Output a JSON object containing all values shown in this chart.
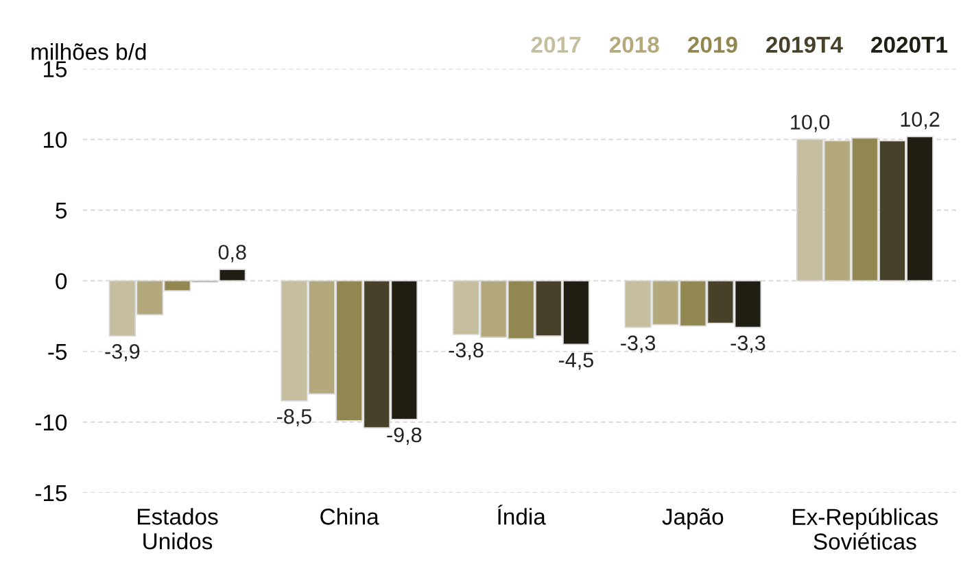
{
  "chart_data": {
    "type": "bar",
    "ylabel": "milhões b/d",
    "categories": [
      "Estados\nUnidos",
      "China",
      "Índia",
      "Japão",
      "Ex-Repúblicas\nSoviéticas"
    ],
    "series": [
      {
        "name": "2017",
        "color": "#c6bf9f",
        "values": [
          -3.9,
          -8.5,
          -3.8,
          -3.3,
          10.0
        ],
        "value_labels": [
          "-3,9",
          "-8,5",
          "-3,8",
          "-3,3",
          "10,0"
        ]
      },
      {
        "name": "2018",
        "color": "#b3a97c",
        "values": [
          -2.4,
          -8.0,
          -4.0,
          -3.1,
          9.9
        ]
      },
      {
        "name": "2019",
        "color": "#928751",
        "values": [
          -0.7,
          -9.9,
          -4.1,
          -3.2,
          10.1
        ]
      },
      {
        "name": "2019T4",
        "color": "#48412a",
        "values": [
          -0.1,
          -10.4,
          -3.9,
          -3.0,
          9.9
        ]
      },
      {
        "name": "2020T1",
        "color": "#201e13",
        "values": [
          0.8,
          -9.8,
          -4.5,
          -3.3,
          10.2
        ],
        "value_labels": [
          "0,8",
          "-9,8",
          "-4,5",
          "-3,3",
          "10,2"
        ]
      }
    ],
    "ylim": [
      -15,
      15
    ],
    "yticks": [
      15,
      10,
      5,
      0,
      -5,
      -10,
      -15
    ],
    "grid": "y",
    "legend": "top right"
  }
}
